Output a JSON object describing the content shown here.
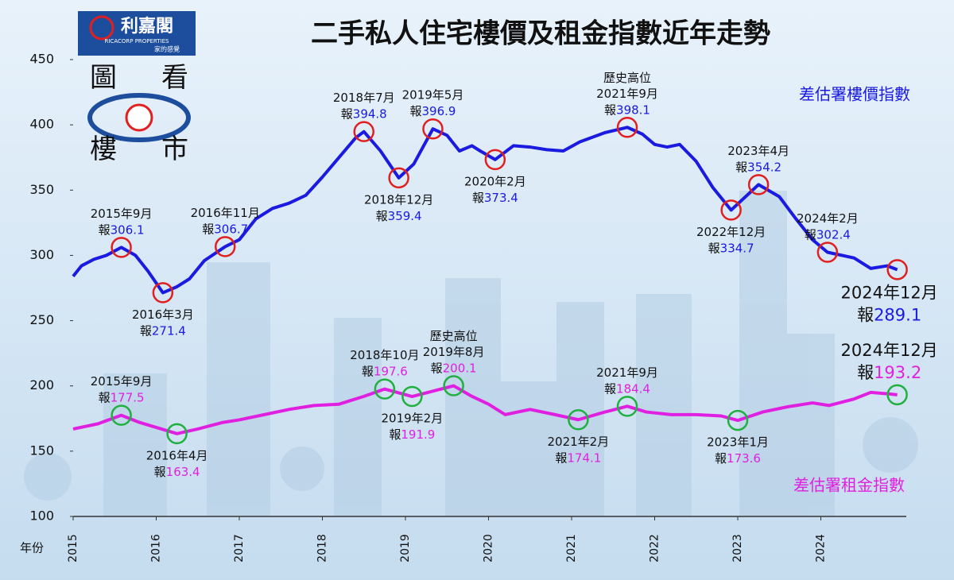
{
  "chart_data": {
    "type": "line",
    "title": "二手私人住宅樓價及租金指數近年走勢",
    "x_label": "年份",
    "logo": {
      "name": "利嘉閣",
      "english": "RICACORP PROPERTIES",
      "slogan": "家的感覺",
      "badge": [
        "圖",
        "看",
        "樓",
        "市"
      ]
    },
    "xlim": [
      2015,
      2025
    ],
    "xticks": [
      2015,
      2016,
      2017,
      2018,
      2019,
      2020,
      2021,
      2022,
      2023,
      2024
    ],
    "ylim": [
      100,
      450
    ],
    "yticks": [
      100,
      150,
      200,
      250,
      300,
      350,
      400,
      450
    ],
    "series": [
      {
        "name": "差估署樓價指數",
        "color": "#1a1ae0",
        "marker_color": "#e02020",
        "x": [
          2015,
          2015.1,
          2015.25,
          2015.4,
          2015.58,
          2015.75,
          2015.9,
          2016.08,
          2016.25,
          2016.4,
          2016.58,
          2016.83,
          2017,
          2017.2,
          2017.4,
          2017.6,
          2017.8,
          2018,
          2018.2,
          2018.4,
          2018.5,
          2018.7,
          2018.92,
          2019.1,
          2019.33,
          2019.5,
          2019.65,
          2019.8,
          2019.9,
          2020.08,
          2020.3,
          2020.5,
          2020.7,
          2020.9,
          2021.1,
          2021.4,
          2021.67,
          2021.85,
          2022,
          2022.15,
          2022.3,
          2022.5,
          2022.7,
          2022.92,
          2023.25,
          2023.5,
          2023.7,
          2023.9,
          2024.08,
          2024.4,
          2024.6,
          2024.8,
          2024.92
        ],
        "values": [
          284,
          292,
          297,
          300,
          306.1,
          300,
          288,
          271.4,
          276,
          282,
          296,
          306.7,
          312,
          328,
          336,
          340,
          346,
          360,
          375,
          390,
          394.8,
          380,
          359.4,
          370,
          396.9,
          392,
          380,
          384,
          380,
          373.4,
          384,
          383,
          381,
          380,
          387,
          394,
          398.1,
          393,
          385,
          383,
          385,
          372,
          352,
          334.7,
          354.2,
          345,
          328,
          312,
          302.4,
          298,
          290,
          292,
          289.1
        ],
        "annotations": [
          {
            "x": 2015.58,
            "date": "2015年9月",
            "prefix": "報"
          },
          {
            "x": 2016.08,
            "date": "2016年3月",
            "prefix": "報"
          },
          {
            "x": 2016.83,
            "date": "2016年11月",
            "prefix": "報"
          },
          {
            "x": 2018.5,
            "date": "2018年7月",
            "prefix": "報"
          },
          {
            "x": 2018.92,
            "date": "2018年12月",
            "prefix": "報"
          },
          {
            "x": 2019.33,
            "date": "2019年5月",
            "prefix": "報"
          },
          {
            "x": 2020.08,
            "date": "2020年2月",
            "prefix": "報"
          },
          {
            "x": 2021.67,
            "date": "2021年9月",
            "prefix": "報",
            "note": "歷史高位"
          },
          {
            "x": 2022.92,
            "date": "2022年12月",
            "prefix": "報"
          },
          {
            "x": 2023.25,
            "date": "2023年4月",
            "prefix": "報"
          },
          {
            "x": 2024.08,
            "date": "2024年2月",
            "prefix": "報"
          },
          {
            "x": 2024.92,
            "date": "2024年12月",
            "prefix": "報"
          }
        ]
      },
      {
        "name": "差估署租金指數",
        "color": "#e020e0",
        "marker_color": "#20b040",
        "x": [
          2015,
          2015.3,
          2015.58,
          2015.8,
          2016.25,
          2016.5,
          2016.8,
          2017,
          2017.3,
          2017.6,
          2017.9,
          2018.2,
          2018.5,
          2018.75,
          2019.08,
          2019.58,
          2019.8,
          2020,
          2020.2,
          2020.5,
          2020.8,
          2021.08,
          2021.4,
          2021.67,
          2021.9,
          2022.2,
          2022.5,
          2022.8,
          2023,
          2023.3,
          2023.6,
          2023.9,
          2024.1,
          2024.4,
          2024.6,
          2024.8,
          2024.92
        ],
        "values": [
          167,
          171,
          177.5,
          172,
          163.4,
          167,
          172,
          174,
          178,
          182,
          185,
          186,
          192,
          197.6,
          191.9,
          200.1,
          192,
          186,
          178,
          182,
          178,
          174.1,
          180,
          184.4,
          180,
          178,
          178,
          177,
          173.6,
          180,
          184,
          187,
          185,
          190,
          195,
          194,
          193.2
        ],
        "annotations": [
          {
            "x": 2015.58,
            "date": "2015年9月",
            "prefix": "報"
          },
          {
            "x": 2016.25,
            "date": "2016年4月",
            "prefix": "報"
          },
          {
            "x": 2018.75,
            "date": "2018年10月",
            "prefix": "報"
          },
          {
            "x": 2019.08,
            "date": "2019年2月",
            "prefix": "報"
          },
          {
            "x": 2019.58,
            "date": "2019年8月",
            "prefix": "報",
            "note": "歷史高位"
          },
          {
            "x": 2021.08,
            "date": "2021年2月",
            "prefix": "報"
          },
          {
            "x": 2021.67,
            "date": "2021年9月",
            "prefix": "報"
          },
          {
            "x": 2023,
            "date": "2023年1月",
            "prefix": "報"
          },
          {
            "x": 2024.92,
            "date": "2024年12月",
            "prefix": "報"
          }
        ]
      }
    ]
  }
}
